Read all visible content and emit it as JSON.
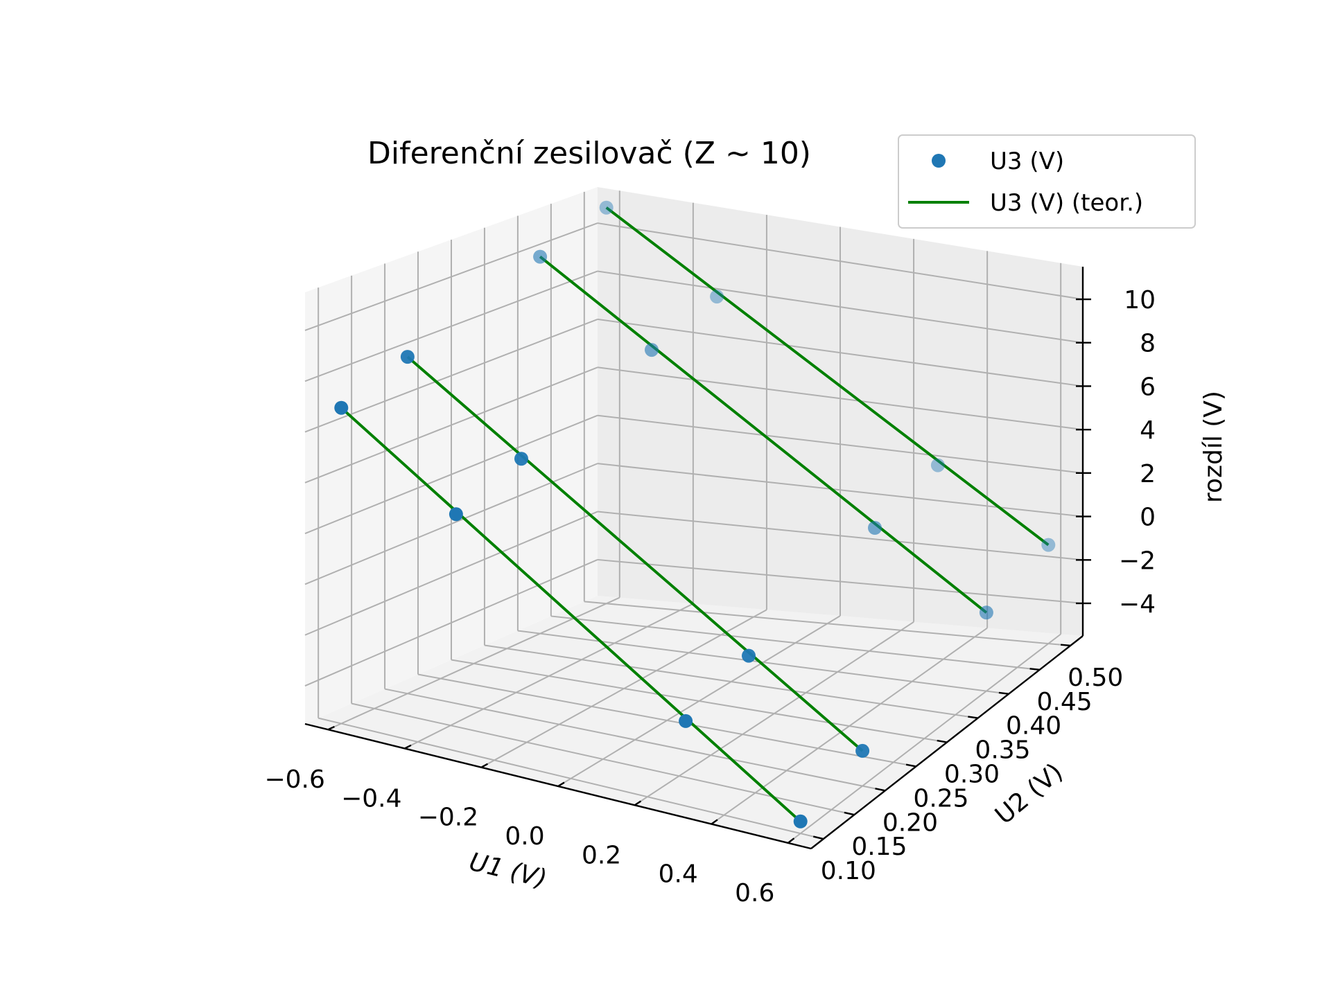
{
  "chart_data": {
    "type": "scatter",
    "projection": "3d",
    "title": "Diferenční zesilovač (Z ~ 10)",
    "xlabel": "U1 (V)",
    "ylabel": "U2 (V)",
    "zlabel": "rozdíl (V)",
    "xlim": [
      -0.66,
      0.66
    ],
    "ylim": [
      0.08,
      0.52
    ],
    "zlim": [
      -5.5,
      11.5
    ],
    "xticks": [
      -0.6,
      -0.4,
      -0.2,
      0.0,
      0.2,
      0.4,
      0.6
    ],
    "xtick_labels": [
      "−0.6",
      "−0.4",
      "−0.2",
      "0.0",
      "0.2",
      "0.4",
      "0.6"
    ],
    "yticks": [
      0.1,
      0.15,
      0.2,
      0.25,
      0.3,
      0.35,
      0.4,
      0.45,
      0.5
    ],
    "ytick_labels": [
      "0.10",
      "0.15",
      "0.20",
      "0.25",
      "0.30",
      "0.35",
      "0.40",
      "0.45",
      "0.50"
    ],
    "zticks": [
      -4,
      -2,
      0,
      2,
      4,
      6,
      8,
      10
    ],
    "ztick_labels": [
      "−4",
      "−2",
      "0",
      "2",
      "4",
      "6",
      "8",
      "10"
    ],
    "grid": true,
    "legend_position": "top-right",
    "series": [
      {
        "name": "U3 (V)",
        "kind": "scatter",
        "color": "#1f77b4",
        "points": [
          {
            "x": -0.6,
            "y": 0.1,
            "z": 7.0
          },
          {
            "x": -0.3,
            "y": 0.1,
            "z": 4.0
          },
          {
            "x": 0.3,
            "y": 0.1,
            "z": -2.0
          },
          {
            "x": 0.6,
            "y": 0.1,
            "z": -5.0
          },
          {
            "x": -0.6,
            "y": 0.2,
            "z": 8.0
          },
          {
            "x": -0.3,
            "y": 0.2,
            "z": 5.0
          },
          {
            "x": 0.3,
            "y": 0.2,
            "z": -1.0
          },
          {
            "x": 0.6,
            "y": 0.2,
            "z": -4.0
          },
          {
            "x": -0.6,
            "y": 0.4,
            "z": 10.0
          },
          {
            "x": -0.3,
            "y": 0.4,
            "z": 7.0
          },
          {
            "x": 0.3,
            "y": 0.4,
            "z": 1.0
          },
          {
            "x": 0.6,
            "y": 0.4,
            "z": -2.0
          },
          {
            "x": -0.6,
            "y": 0.5,
            "z": 11.0
          },
          {
            "x": -0.3,
            "y": 0.5,
            "z": 8.0
          },
          {
            "x": 0.3,
            "y": 0.5,
            "z": 2.0
          },
          {
            "x": 0.6,
            "y": 0.5,
            "z": -1.0
          }
        ]
      },
      {
        "name": "U3 (V) (teor.)",
        "kind": "line",
        "color": "#008000",
        "lines": [
          {
            "y": 0.1,
            "x": [
              -0.6,
              0.6
            ],
            "z": [
              7.0,
              -5.0
            ]
          },
          {
            "y": 0.2,
            "x": [
              -0.6,
              0.6
            ],
            "z": [
              8.0,
              -4.0
            ]
          },
          {
            "y": 0.4,
            "x": [
              -0.6,
              0.6
            ],
            "z": [
              10.0,
              -2.0
            ]
          },
          {
            "y": 0.5,
            "x": [
              -0.6,
              0.6
            ],
            "z": [
              11.0,
              -1.0
            ]
          }
        ]
      }
    ]
  }
}
